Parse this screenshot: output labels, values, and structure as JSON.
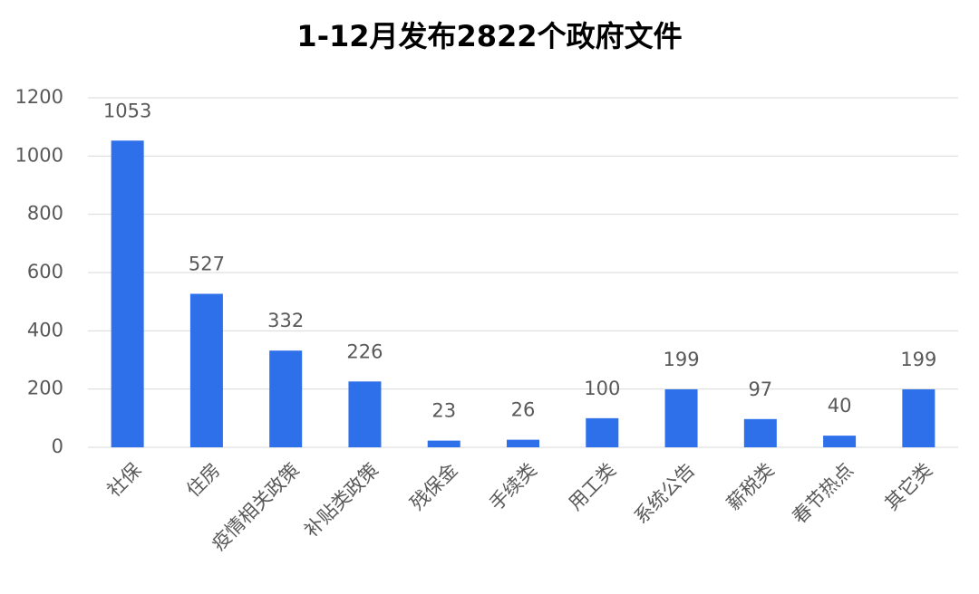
{
  "chart_data": {
    "type": "bar",
    "title": "1-12月发布2822个政府文件",
    "categories": [
      "社保",
      "住房",
      "疫情相关政策",
      "补贴类政策",
      "残保金",
      "手续类",
      "用工类",
      "系统公告",
      "薪税类",
      "春节热点",
      "其它类"
    ],
    "values": [
      1053,
      527,
      332,
      226,
      23,
      26,
      100,
      199,
      97,
      40,
      199
    ],
    "color": "#2e6fea",
    "ylim": [
      0,
      1200
    ],
    "yticks": [
      0,
      200,
      400,
      600,
      800,
      1000,
      1200
    ],
    "grid": true
  }
}
